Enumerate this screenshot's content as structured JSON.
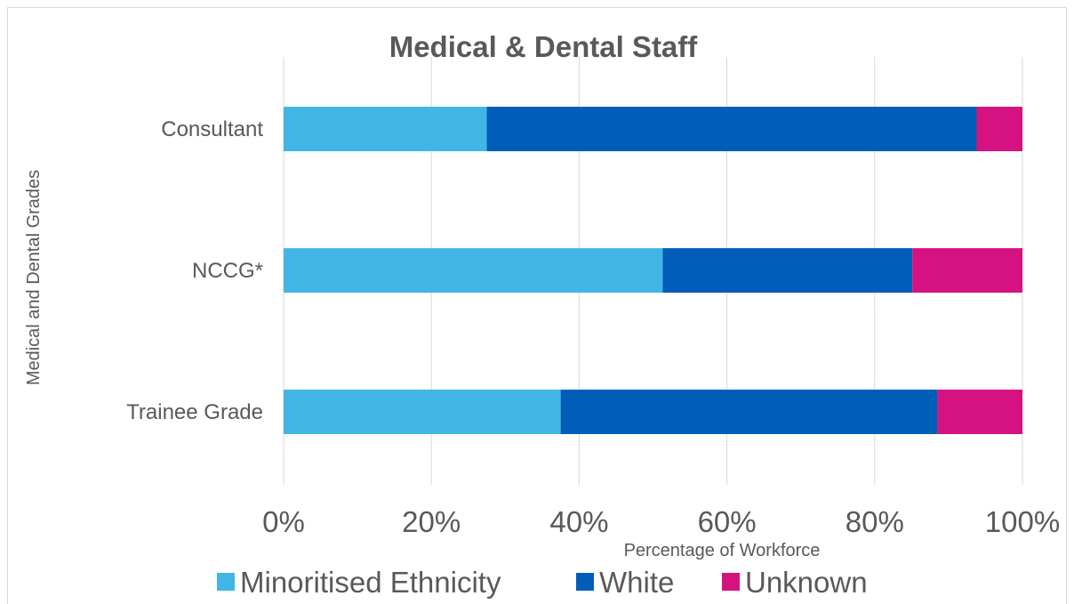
{
  "chart_data": {
    "type": "bar",
    "orientation": "horizontal",
    "stacked": true,
    "title": "Medical & Dental Staff",
    "xlabel": "Percentage of Workforce",
    "ylabel": "Medical and Dental Grades",
    "categories": [
      "Consultant",
      "NCCG*",
      "Trainee Grade"
    ],
    "series": [
      {
        "name": "Minoritised Ethnicity",
        "color": "#41b6e6",
        "values": [
          27.5,
          51.3,
          37.5
        ]
      },
      {
        "name": "White",
        "color": "#005eb8",
        "values": [
          66.3,
          33.8,
          51.0
        ]
      },
      {
        "name": "Unknown",
        "color": "#d5127f",
        "values": [
          6.2,
          14.9,
          11.5
        ]
      }
    ],
    "xlim": [
      0,
      100
    ],
    "x_ticks": [
      "0%",
      "20%",
      "40%",
      "60%",
      "80%",
      "100%"
    ],
    "grid": true,
    "legend_position": "bottom"
  }
}
